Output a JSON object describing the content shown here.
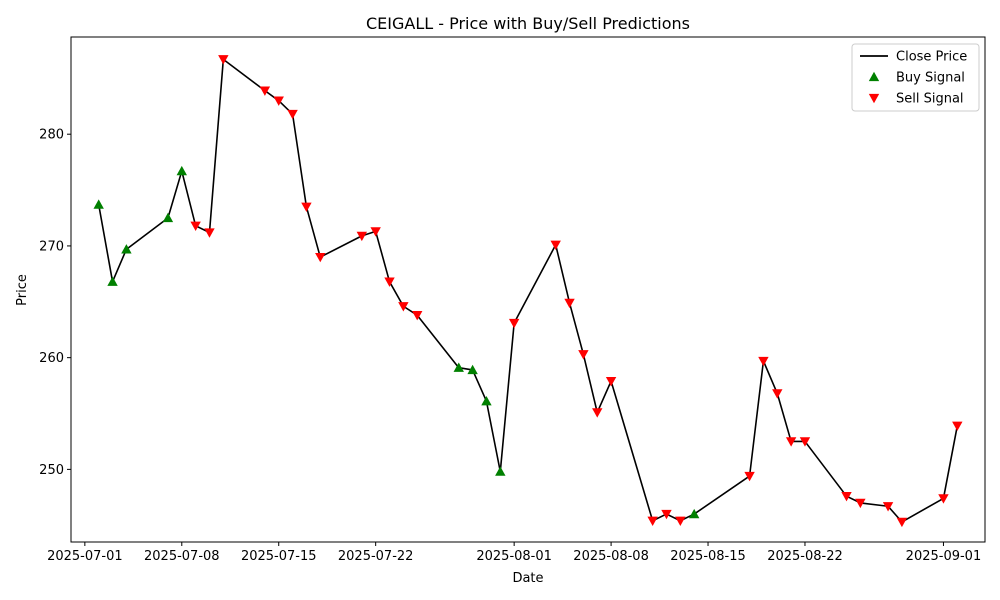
{
  "chart_data": {
    "type": "line",
    "title": "CEIGALL - Price with Buy/Sell Predictions",
    "xlabel": "Date",
    "ylabel": "Price",
    "x_ticks": [
      "2025-07-01",
      "2025-07-08",
      "2025-07-15",
      "2025-07-22",
      "2025-08-01",
      "2025-08-08",
      "2025-08-15",
      "2025-08-22",
      "2025-09-01"
    ],
    "y_ticks": [
      250,
      260,
      270,
      280
    ],
    "xlim": [
      "2025-06-30",
      "2025-09-04"
    ],
    "ylim": [
      243.5,
      288.7
    ],
    "grid": false,
    "legend": {
      "position": "top-right",
      "entries": [
        {
          "label": "Close Price",
          "marker": "line",
          "color": "#000000"
        },
        {
          "label": "Buy Signal",
          "marker": "triangle-up",
          "color": "#008000"
        },
        {
          "label": "Sell Signal",
          "marker": "triangle-down",
          "color": "#ff0000"
        }
      ]
    },
    "series": [
      {
        "name": "Close Price",
        "color": "#000000",
        "points": [
          [
            "2025-07-02",
            273.7,
            "buy"
          ],
          [
            "2025-07-03",
            266.8,
            "buy"
          ],
          [
            "2025-07-04",
            269.7,
            "buy"
          ],
          [
            "2025-07-07",
            272.5,
            "buy"
          ],
          [
            "2025-07-08",
            276.7,
            "buy"
          ],
          [
            "2025-07-09",
            271.8,
            "sell"
          ],
          [
            "2025-07-10",
            271.2,
            "sell"
          ],
          [
            "2025-07-11",
            286.7,
            "sell"
          ],
          [
            "2025-07-14",
            283.9,
            "sell"
          ],
          [
            "2025-07-15",
            283.0,
            "sell"
          ],
          [
            "2025-07-16",
            281.8,
            "sell"
          ],
          [
            "2025-07-17",
            273.5,
            "sell"
          ],
          [
            "2025-07-18",
            269.0,
            "sell"
          ],
          [
            "2025-07-21",
            270.9,
            "sell"
          ],
          [
            "2025-07-22",
            271.3,
            "sell"
          ],
          [
            "2025-07-23",
            266.8,
            "sell"
          ],
          [
            "2025-07-24",
            264.6,
            "sell"
          ],
          [
            "2025-07-25",
            263.8,
            "sell"
          ],
          [
            "2025-07-28",
            259.1,
            "buy"
          ],
          [
            "2025-07-29",
            258.9,
            "buy"
          ],
          [
            "2025-07-30",
            256.1,
            "buy"
          ],
          [
            "2025-07-31",
            249.8,
            "buy"
          ],
          [
            "2025-08-01",
            263.1,
            "sell"
          ],
          [
            "2025-08-04",
            270.1,
            "sell"
          ],
          [
            "2025-08-05",
            264.9,
            "sell"
          ],
          [
            "2025-08-06",
            260.3,
            "sell"
          ],
          [
            "2025-08-07",
            255.1,
            "sell"
          ],
          [
            "2025-08-08",
            257.9,
            "sell"
          ],
          [
            "2025-08-11",
            245.4,
            "sell"
          ],
          [
            "2025-08-12",
            246.0,
            "sell"
          ],
          [
            "2025-08-13",
            245.4,
            "sell"
          ],
          [
            "2025-08-14",
            246.0,
            "buy"
          ],
          [
            "2025-08-18",
            249.4,
            "sell"
          ],
          [
            "2025-08-19",
            259.7,
            "sell"
          ],
          [
            "2025-08-20",
            256.8,
            "sell"
          ],
          [
            "2025-08-21",
            252.5,
            "sell"
          ],
          [
            "2025-08-22",
            252.5,
            "sell"
          ],
          [
            "2025-08-25",
            247.6,
            "sell"
          ],
          [
            "2025-08-26",
            247.0,
            "sell"
          ],
          [
            "2025-08-28",
            246.7,
            "sell"
          ],
          [
            "2025-08-29",
            245.3,
            "sell"
          ],
          [
            "2025-09-01",
            247.4,
            "sell"
          ],
          [
            "2025-09-02",
            253.9,
            "sell"
          ]
        ]
      }
    ]
  }
}
